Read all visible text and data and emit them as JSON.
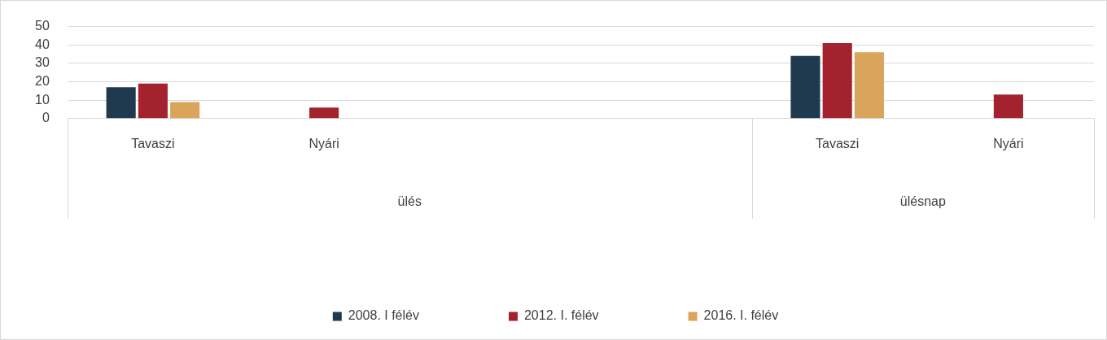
{
  "chart_data": {
    "type": "bar",
    "categories": [
      "Tavaszi",
      "Nyári",
      null,
      null,
      "Tavaszi",
      "Nyári"
    ],
    "series": [
      {
        "name": "2008. I félév",
        "color": "#1f3a4f",
        "values": [
          17,
          null,
          null,
          null,
          34,
          null
        ]
      },
      {
        "name": "2012. I. félév",
        "color": "#a3222d",
        "values": [
          19,
          6,
          null,
          null,
          41,
          13
        ]
      },
      {
        "name": "2016. I. félév",
        "color": "#d9a55b",
        "values": [
          9,
          null,
          null,
          null,
          36,
          null
        ]
      }
    ],
    "ylim": [
      0,
      50
    ],
    "yticks": [
      0,
      10,
      20,
      30,
      40,
      50
    ],
    "grid": "y",
    "legend": "bottom",
    "annotations": [
      "ülés",
      "ülésnap"
    ]
  }
}
